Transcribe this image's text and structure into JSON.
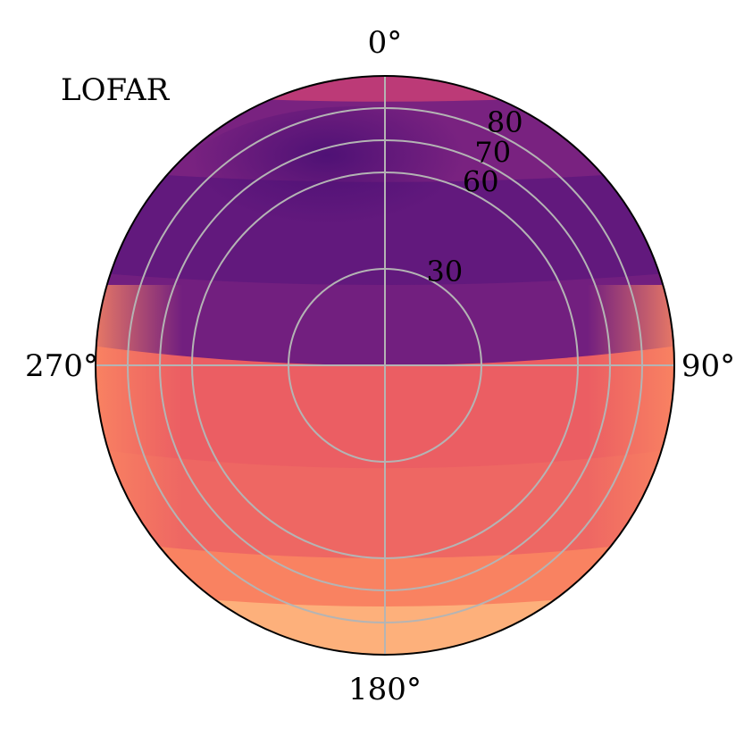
{
  "chart_data": {
    "type": "heatmap",
    "projection": "polar sky plot (azimuth angle, zenith angle)",
    "title": "LOFAR",
    "azimuth_labels": [
      "0°",
      "90°",
      "180°",
      "270°"
    ],
    "azimuth_ticks_deg": [
      0,
      90,
      180,
      270
    ],
    "zenith_rings": [
      30,
      60,
      70,
      80
    ],
    "zenith_ring_labels": [
      "30",
      "60",
      "70",
      "80"
    ],
    "zenith_range_deg": [
      0,
      90
    ],
    "colormap": "magma",
    "bands": [
      {
        "zenith_from_north": 90,
        "zenith_to_north": 82,
        "value": 0.52,
        "side": "north"
      },
      {
        "zenith_from_north": 82,
        "zenith_to_north": 57,
        "value": 0.36,
        "side": "north"
      },
      {
        "zenith_from_north": 57,
        "zenith_to_north": 25,
        "value": 0.3,
        "side": "north"
      },
      {
        "zenith_from_north": 25,
        "zenith_to_north": 0,
        "value": 0.34,
        "side": "north"
      },
      {
        "zenith_from_south": 0,
        "zenith_to_south": 32,
        "value": 0.66,
        "side": "south"
      },
      {
        "zenith_from_south": 32,
        "zenith_to_south": 60,
        "value": 0.68,
        "side": "south"
      },
      {
        "zenith_from_south": 60,
        "zenith_to_south": 75,
        "value": 0.74,
        "side": "south"
      },
      {
        "zenith_from_south": 75,
        "zenith_to_south": 90,
        "value": 0.84,
        "side": "south"
      }
    ],
    "grid": true,
    "colors": {
      "low": "#4a0f74",
      "mid": "#b5367a",
      "high": "#fb8861",
      "grid": "#b4b4b4",
      "outline": "#000000"
    }
  }
}
